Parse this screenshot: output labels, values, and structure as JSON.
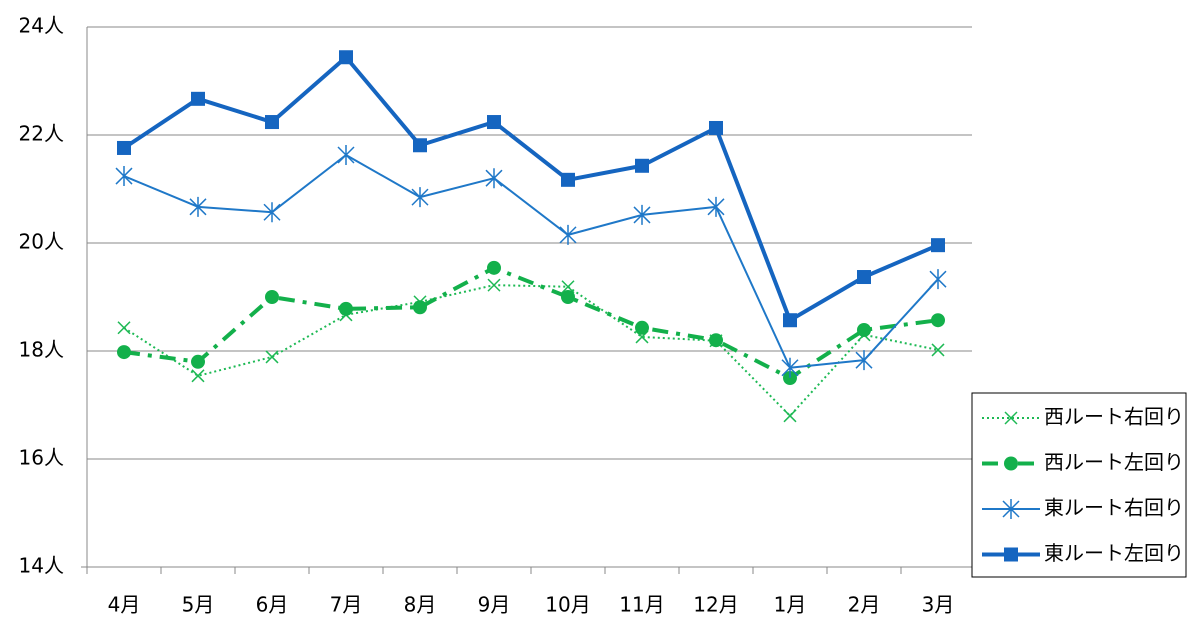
{
  "chart_data": {
    "type": "line",
    "categories": [
      "4月",
      "5月",
      "6月",
      "7月",
      "8月",
      "9月",
      "10月",
      "11月",
      "12月",
      "1月",
      "2月",
      "3月"
    ],
    "ylim": [
      14,
      24
    ],
    "yticks": [
      {
        "value": 14,
        "label": "14人"
      },
      {
        "value": 16,
        "label": "16人"
      },
      {
        "value": 18,
        "label": "18人"
      },
      {
        "value": 20,
        "label": "20人"
      },
      {
        "value": 22,
        "label": "22人"
      },
      {
        "value": 24,
        "label": "24人"
      }
    ],
    "grid": true,
    "legend": "right",
    "series": [
      {
        "name": "西ルート右回り",
        "color": "#1db954",
        "marker": "x",
        "dash": "dotted",
        "width": 2,
        "values": [
          18.43,
          17.54,
          17.89,
          18.67,
          18.91,
          19.22,
          19.19,
          18.26,
          18.19,
          16.8,
          18.3,
          18.02
        ]
      },
      {
        "name": "西ルート左回り",
        "color": "#13b04b",
        "marker": "circle",
        "dash": "dashed",
        "width": 4,
        "values": [
          17.98,
          17.8,
          19.0,
          18.78,
          18.81,
          19.54,
          19.0,
          18.43,
          18.2,
          17.5,
          18.39,
          18.57
        ]
      },
      {
        "name": "東ルート右回り",
        "color": "#1f78c8",
        "marker": "asterisk",
        "dash": "solid",
        "width": 2,
        "values": [
          21.24,
          20.67,
          20.57,
          21.63,
          20.85,
          21.2,
          20.15,
          20.52,
          20.67,
          17.69,
          17.83,
          19.33
        ]
      },
      {
        "name": "東ルート左回り",
        "color": "#1565c0",
        "marker": "square",
        "dash": "solid",
        "width": 4,
        "values": [
          21.76,
          22.67,
          22.24,
          23.44,
          21.81,
          22.24,
          21.17,
          21.43,
          22.13,
          18.57,
          19.37,
          19.96
        ]
      }
    ]
  }
}
